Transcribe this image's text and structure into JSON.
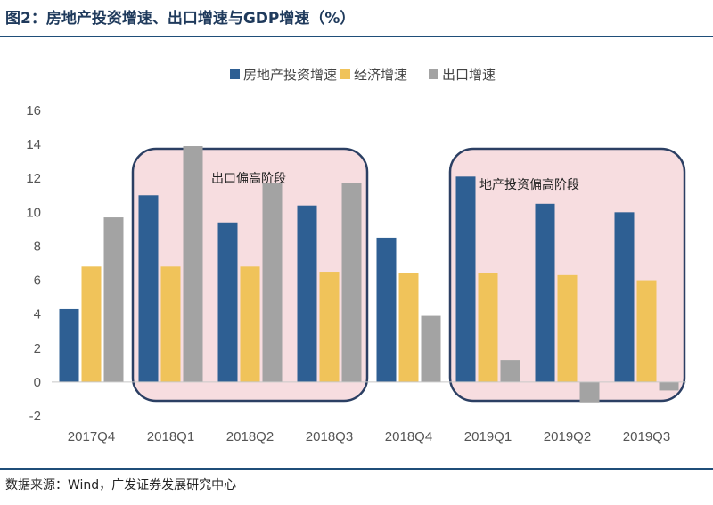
{
  "title": "图2：房地产投资增速、出口增速与GDP增速（%）",
  "source": "数据来源：Wind，广发证券发展研究中心",
  "colors": {
    "real_estate": "#2e5f93",
    "economy": "#f0c35a",
    "export": "#a3a3a3",
    "highlight_fill": "#f7dde0",
    "highlight_stroke": "#2b3f63"
  },
  "chart_data": {
    "type": "bar",
    "title": "图2：房地产投资增速、出口增速与GDP增速（%）",
    "xlabel": "",
    "ylabel": "",
    "ylim": [
      -2,
      16
    ],
    "yticks": [
      -2,
      0,
      2,
      4,
      6,
      8,
      10,
      12,
      14,
      16
    ],
    "ytick_labels": [
      "-2",
      "0",
      "2",
      "4",
      "6",
      "8",
      "10",
      "12",
      "14",
      "16"
    ],
    "grid": false,
    "legend_position": "top-center",
    "categories": [
      "2017Q4",
      "2018Q1",
      "2018Q2",
      "2018Q3",
      "2018Q4",
      "2019Q1",
      "2019Q2",
      "2019Q3"
    ],
    "series": [
      {
        "name": "房地产投资增速",
        "color_key": "real_estate",
        "values": [
          4.3,
          11.0,
          9.4,
          10.4,
          8.5,
          12.1,
          10.5,
          10.0
        ]
      },
      {
        "name": "经济增速",
        "color_key": "economy",
        "values": [
          6.8,
          6.8,
          6.8,
          6.5,
          6.4,
          6.4,
          6.3,
          6.0
        ]
      },
      {
        "name": "出口增速",
        "color_key": "export",
        "values": [
          9.7,
          13.9,
          11.7,
          11.7,
          3.9,
          1.3,
          -1.2,
          -0.5
        ]
      }
    ],
    "annotations": [
      {
        "label": "出口偏高阶段",
        "from_category": 1,
        "to_category": 3
      },
      {
        "label": "地产投资偏高阶段",
        "from_category": 5,
        "to_category": 7
      }
    ]
  }
}
